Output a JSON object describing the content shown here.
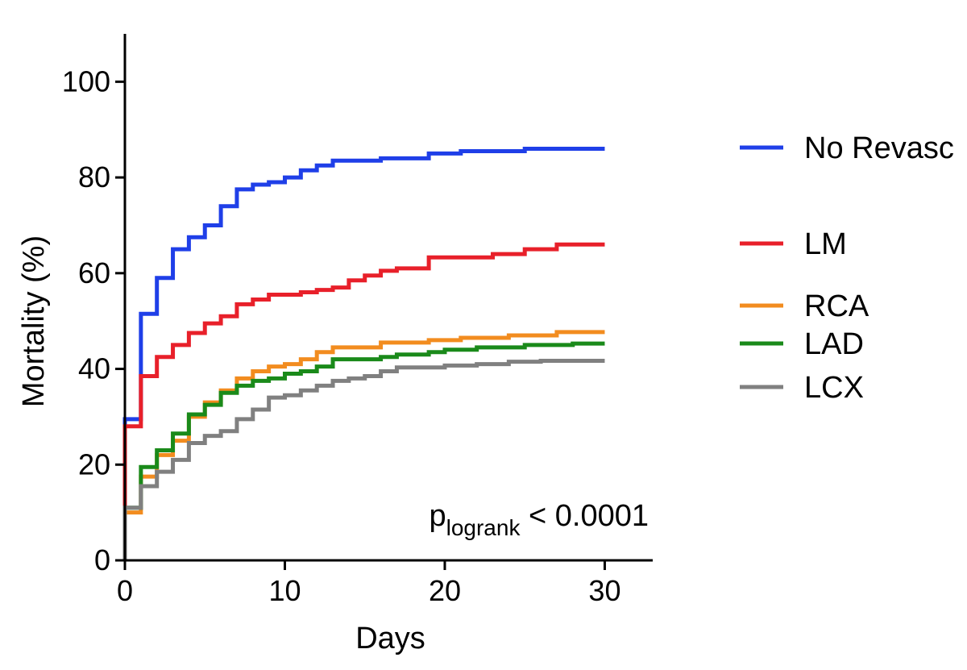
{
  "chart_data": {
    "type": "line",
    "step": true,
    "xlabel": "Days",
    "ylabel": "Mortality (%)",
    "xlim": [
      0,
      33
    ],
    "ylim": [
      0,
      110
    ],
    "xticks": [
      0,
      10,
      20,
      30
    ],
    "yticks": [
      0,
      20,
      40,
      60,
      80,
      100
    ],
    "grid": false,
    "legend_position": "right",
    "annotation": {
      "main": "p",
      "subscript": "logrank",
      "suffix": " < 0.0001"
    },
    "series": [
      {
        "name": "No Revasc",
        "color": "#1f3fe8",
        "points": [
          [
            0,
            0
          ],
          [
            0,
            29.5
          ],
          [
            1,
            29.5
          ],
          [
            1,
            51.5
          ],
          [
            2,
            51.5
          ],
          [
            2,
            59
          ],
          [
            3,
            59
          ],
          [
            3,
            65
          ],
          [
            4,
            65
          ],
          [
            4,
            67.5
          ],
          [
            5,
            67.5
          ],
          [
            5,
            70
          ],
          [
            6,
            70
          ],
          [
            6,
            74
          ],
          [
            7,
            74
          ],
          [
            7,
            77.5
          ],
          [
            8,
            77.5
          ],
          [
            8,
            78.5
          ],
          [
            9,
            78.5
          ],
          [
            9,
            79
          ],
          [
            10,
            79
          ],
          [
            10,
            80
          ],
          [
            11,
            80
          ],
          [
            11,
            81.5
          ],
          [
            12,
            81.5
          ],
          [
            12,
            82.5
          ],
          [
            13,
            82.5
          ],
          [
            13,
            83.5
          ],
          [
            16,
            83.5
          ],
          [
            16,
            84
          ],
          [
            19,
            84
          ],
          [
            19,
            85
          ],
          [
            21,
            85
          ],
          [
            21,
            85.5
          ],
          [
            25,
            85.5
          ],
          [
            25,
            86
          ],
          [
            30,
            86
          ]
        ]
      },
      {
        "name": "LM",
        "color": "#e8202a",
        "points": [
          [
            0,
            0
          ],
          [
            0,
            28
          ],
          [
            1,
            28
          ],
          [
            1,
            38.5
          ],
          [
            2,
            38.5
          ],
          [
            2,
            42.5
          ],
          [
            3,
            42.5
          ],
          [
            3,
            45
          ],
          [
            4,
            45
          ],
          [
            4,
            47.5
          ],
          [
            5,
            47.5
          ],
          [
            5,
            49.5
          ],
          [
            6,
            49.5
          ],
          [
            6,
            51
          ],
          [
            7,
            51
          ],
          [
            7,
            53.5
          ],
          [
            8,
            53.5
          ],
          [
            8,
            54.5
          ],
          [
            9,
            54.5
          ],
          [
            9,
            55.5
          ],
          [
            11,
            55.5
          ],
          [
            11,
            56
          ],
          [
            12,
            56
          ],
          [
            12,
            56.5
          ],
          [
            13,
            56.5
          ],
          [
            13,
            57
          ],
          [
            14,
            57
          ],
          [
            14,
            58.5
          ],
          [
            15,
            58.5
          ],
          [
            15,
            59.5
          ],
          [
            16,
            59.5
          ],
          [
            16,
            60.5
          ],
          [
            17,
            60.5
          ],
          [
            17,
            61
          ],
          [
            19,
            61
          ],
          [
            19,
            63.3
          ],
          [
            23,
            63.3
          ],
          [
            23,
            64
          ],
          [
            25,
            64
          ],
          [
            25,
            65
          ],
          [
            27,
            65
          ],
          [
            27,
            66
          ],
          [
            30,
            66
          ]
        ]
      },
      {
        "name": "RCA",
        "color": "#f28c1f",
        "points": [
          [
            0,
            0
          ],
          [
            0,
            10
          ],
          [
            1,
            10
          ],
          [
            1,
            17.5
          ],
          [
            2,
            17.5
          ],
          [
            2,
            22
          ],
          [
            3,
            22
          ],
          [
            3,
            25
          ],
          [
            4,
            25
          ],
          [
            4,
            30
          ],
          [
            5,
            30
          ],
          [
            5,
            33
          ],
          [
            6,
            33
          ],
          [
            6,
            35.5
          ],
          [
            7,
            35.5
          ],
          [
            7,
            38
          ],
          [
            8,
            38
          ],
          [
            8,
            39.5
          ],
          [
            9,
            39.5
          ],
          [
            9,
            40.5
          ],
          [
            10,
            40.5
          ],
          [
            10,
            41
          ],
          [
            11,
            41
          ],
          [
            11,
            42
          ],
          [
            12,
            42
          ],
          [
            12,
            43.5
          ],
          [
            13,
            43.5
          ],
          [
            13,
            44.5
          ],
          [
            16,
            44.5
          ],
          [
            16,
            45.5
          ],
          [
            19,
            45.5
          ],
          [
            19,
            46
          ],
          [
            21,
            46
          ],
          [
            21,
            46.5
          ],
          [
            24,
            46.5
          ],
          [
            24,
            47
          ],
          [
            27,
            47
          ],
          [
            27,
            47.7
          ],
          [
            30,
            47.7
          ]
        ]
      },
      {
        "name": "LAD",
        "color": "#1a8a1a",
        "points": [
          [
            0,
            0
          ],
          [
            0,
            11
          ],
          [
            1,
            11
          ],
          [
            1,
            19.5
          ],
          [
            2,
            19.5
          ],
          [
            2,
            23
          ],
          [
            3,
            23
          ],
          [
            3,
            26.5
          ],
          [
            4,
            26.5
          ],
          [
            4,
            30.5
          ],
          [
            5,
            30.5
          ],
          [
            5,
            32.5
          ],
          [
            6,
            32.5
          ],
          [
            6,
            35
          ],
          [
            7,
            35
          ],
          [
            7,
            36.5
          ],
          [
            8,
            36.5
          ],
          [
            8,
            37.5
          ],
          [
            9,
            37.5
          ],
          [
            9,
            38
          ],
          [
            10,
            38
          ],
          [
            10,
            39
          ],
          [
            11,
            39
          ],
          [
            11,
            39.5
          ],
          [
            12,
            39.5
          ],
          [
            12,
            40.5
          ],
          [
            13,
            40.5
          ],
          [
            13,
            42
          ],
          [
            16,
            42
          ],
          [
            16,
            42.5
          ],
          [
            17,
            42.5
          ],
          [
            17,
            43
          ],
          [
            19,
            43
          ],
          [
            19,
            43.5
          ],
          [
            20,
            43.5
          ],
          [
            20,
            44
          ],
          [
            22,
            44
          ],
          [
            22,
            44.5
          ],
          [
            25,
            44.5
          ],
          [
            25,
            45
          ],
          [
            28,
            45
          ],
          [
            28,
            45.3
          ],
          [
            30,
            45.3
          ]
        ]
      },
      {
        "name": "LCX",
        "color": "#808080",
        "points": [
          [
            0,
            0
          ],
          [
            0,
            11
          ],
          [
            1,
            11
          ],
          [
            1,
            15.5
          ],
          [
            2,
            15.5
          ],
          [
            2,
            18.5
          ],
          [
            3,
            18.5
          ],
          [
            3,
            21
          ],
          [
            4,
            21
          ],
          [
            4,
            24.5
          ],
          [
            5,
            24.5
          ],
          [
            5,
            26
          ],
          [
            6,
            26
          ],
          [
            6,
            27
          ],
          [
            7,
            27
          ],
          [
            7,
            29.5
          ],
          [
            8,
            29.5
          ],
          [
            8,
            31.5
          ],
          [
            9,
            31.5
          ],
          [
            9,
            34
          ],
          [
            10,
            34
          ],
          [
            10,
            34.5
          ],
          [
            11,
            34.5
          ],
          [
            11,
            35.5
          ],
          [
            12,
            35.5
          ],
          [
            12,
            36.5
          ],
          [
            13,
            36.5
          ],
          [
            13,
            37.5
          ],
          [
            14,
            37.5
          ],
          [
            14,
            38
          ],
          [
            15,
            38
          ],
          [
            15,
            38.5
          ],
          [
            16,
            38.5
          ],
          [
            16,
            39.5
          ],
          [
            17,
            39.5
          ],
          [
            17,
            40.3
          ],
          [
            20,
            40.3
          ],
          [
            20,
            40.7
          ],
          [
            22,
            40.7
          ],
          [
            22,
            41
          ],
          [
            24,
            41
          ],
          [
            24,
            41.5
          ],
          [
            26,
            41.5
          ],
          [
            26,
            41.7
          ],
          [
            30,
            41.7
          ]
        ]
      }
    ]
  }
}
